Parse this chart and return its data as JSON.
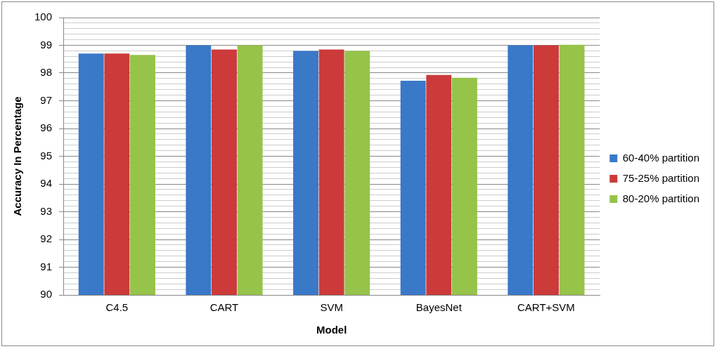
{
  "chart_data": {
    "type": "bar",
    "xlabel": "Model",
    "ylabel": "Accuracy In Percentage",
    "categories": [
      "C4.5",
      "CART",
      "SVM",
      "BayesNet",
      "CART+SVM"
    ],
    "series": [
      {
        "name": "60-40% partition",
        "color": "#3a78c8",
        "values": [
          98.7,
          99.0,
          98.8,
          97.72,
          99.0
        ]
      },
      {
        "name": "75-25% partition",
        "color": "#cc3a3a",
        "values": [
          98.7,
          98.85,
          98.85,
          97.93,
          99.0
        ]
      },
      {
        "name": "80-20% partition",
        "color": "#96c34a",
        "values": [
          98.65,
          99.0,
          98.8,
          97.83,
          99.02
        ]
      }
    ],
    "ylim": [
      90,
      100
    ],
    "yticks": [
      90,
      {
        "value": 90.2,
        "label": null
      },
      {
        "value": 90.4,
        "label": null
      },
      {
        "value": 90.6,
        "label": null
      },
      {
        "value": 90.8,
        "label": null
      },
      91,
      {
        "value": 91.2,
        "label": null
      },
      {
        "value": 91.4,
        "label": null
      },
      {
        "value": 91.6,
        "label": null
      },
      {
        "value": 91.8,
        "label": null
      },
      92,
      {
        "value": 92.2,
        "label": null
      },
      {
        "value": 92.4,
        "label": null
      },
      {
        "value": 92.6,
        "label": null
      },
      {
        "value": 92.8,
        "label": null
      },
      93,
      {
        "value": 93.2,
        "label": null
      },
      {
        "value": 93.4,
        "label": null
      },
      {
        "value": 93.6,
        "label": null
      },
      {
        "value": 93.8,
        "label": null
      },
      94,
      {
        "value": 94.2,
        "label": null
      },
      {
        "value": 94.4,
        "label": null
      },
      {
        "value": 94.6,
        "label": null
      },
      {
        "value": 94.8,
        "label": null
      },
      95,
      {
        "value": 95.2,
        "label": null
      },
      {
        "value": 95.4,
        "label": null
      },
      {
        "value": 95.6,
        "label": null
      },
      {
        "value": 95.8,
        "label": null
      },
      96,
      {
        "value": 96.2,
        "label": null
      },
      {
        "value": 96.4,
        "label": null
      },
      {
        "value": 96.6,
        "label": null
      },
      {
        "value": 96.8,
        "label": null
      },
      97,
      {
        "value": 97.2,
        "label": null
      },
      {
        "value": 97.4,
        "label": null
      },
      {
        "value": 97.6,
        "label": null
      },
      {
        "value": 97.8,
        "label": null
      },
      98,
      {
        "value": 98.2,
        "label": null
      },
      {
        "value": 98.4,
        "label": null
      },
      {
        "value": 98.6,
        "label": null
      },
      {
        "value": 98.8,
        "label": null
      },
      99,
      {
        "value": 99.2,
        "label": null
      },
      {
        "value": 99.4,
        "label": null
      },
      {
        "value": 99.6,
        "label": null
      },
      {
        "value": 99.8,
        "label": null
      },
      100
    ],
    "grid": "y",
    "legend": "right"
  }
}
